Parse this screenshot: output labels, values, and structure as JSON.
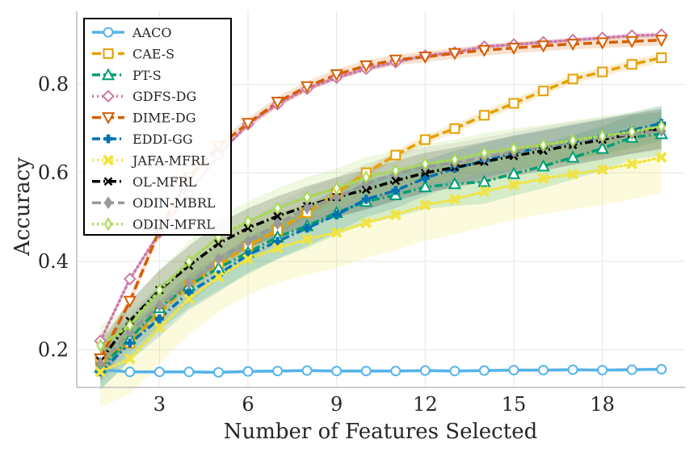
{
  "chart_data": {
    "type": "line",
    "title": "",
    "xlabel": "Number of Features Selected",
    "ylabel": "Accuracy",
    "xlim": [
      0.2,
      20.8
    ],
    "ylim": [
      0.115,
      0.965
    ],
    "xticks": [
      3,
      6,
      9,
      12,
      15,
      18
    ],
    "yticks": [
      0.2,
      0.4,
      0.6,
      0.8
    ],
    "xtick_labels": [
      "3",
      "6",
      "9",
      "12",
      "15",
      "18"
    ],
    "ytick_labels": [
      "0.2",
      "0.4",
      "0.6",
      "0.8"
    ],
    "grid": true,
    "legend_position": "top-left",
    "x": [
      1,
      2,
      3,
      4,
      5,
      6,
      7,
      8,
      9,
      10,
      11,
      12,
      13,
      14,
      15,
      16,
      17,
      18,
      19,
      20
    ],
    "series": [
      {
        "name": "AACO",
        "color": "#56b4e9",
        "dash": "solid",
        "marker": "circle",
        "band": 0.004,
        "values": [
          0.155,
          0.15,
          0.15,
          0.15,
          0.149,
          0.151,
          0.152,
          0.153,
          0.152,
          0.152,
          0.152,
          0.153,
          0.152,
          0.153,
          0.154,
          0.154,
          0.155,
          0.154,
          0.155,
          0.156
        ]
      },
      {
        "name": "CAE-S",
        "color": "#e69f00",
        "dash": "dashed",
        "marker": "square",
        "band": 0.01,
        "values": [
          0.175,
          0.215,
          0.285,
          0.345,
          0.39,
          0.435,
          0.47,
          0.51,
          0.555,
          0.6,
          0.64,
          0.675,
          0.7,
          0.73,
          0.757,
          0.785,
          0.812,
          0.828,
          0.845,
          0.86
        ]
      },
      {
        "name": "PT-S",
        "color": "#009e73",
        "dash": "dashdot",
        "marker": "triangle",
        "band": 0.05,
        "values": [
          0.16,
          0.225,
          0.295,
          0.345,
          0.385,
          0.42,
          0.455,
          0.48,
          0.51,
          0.535,
          0.55,
          0.568,
          0.575,
          0.58,
          0.598,
          0.615,
          0.635,
          0.655,
          0.68,
          0.688
        ]
      },
      {
        "name": "GDFS-DG",
        "color": "#cc79a7",
        "dash": "dotted",
        "marker": "diamond",
        "band": 0.006,
        "values": [
          0.22,
          0.36,
          0.465,
          0.555,
          0.64,
          0.71,
          0.755,
          0.79,
          0.815,
          0.835,
          0.85,
          0.865,
          0.872,
          0.885,
          0.89,
          0.895,
          0.9,
          0.905,
          0.91,
          0.912
        ]
      },
      {
        "name": "DIME-DG",
        "color": "#d55e00",
        "dash": "dashed",
        "marker": "triangle-down",
        "band": 0.012,
        "values": [
          0.18,
          0.31,
          0.47,
          0.59,
          0.66,
          0.712,
          0.76,
          0.795,
          0.822,
          0.842,
          0.855,
          0.862,
          0.87,
          0.877,
          0.882,
          0.887,
          0.891,
          0.894,
          0.897,
          0.9
        ]
      },
      {
        "name": "EDDI-GG",
        "color": "#0072b2",
        "dash": "dashdot",
        "marker": "plus",
        "band": 0.04,
        "values": [
          0.15,
          0.215,
          0.27,
          0.33,
          0.37,
          0.415,
          0.445,
          0.475,
          0.505,
          0.54,
          0.56,
          0.588,
          0.61,
          0.628,
          0.645,
          0.658,
          0.67,
          0.682,
          0.696,
          0.712
        ]
      },
      {
        "name": "JAFA-MFRL",
        "color": "#f0e442",
        "dash": "dotted",
        "marker": "x",
        "band": 0.08,
        "values": [
          0.15,
          0.18,
          0.25,
          0.315,
          0.365,
          0.405,
          0.43,
          0.45,
          0.465,
          0.487,
          0.505,
          0.527,
          0.54,
          0.558,
          0.573,
          0.587,
          0.597,
          0.607,
          0.62,
          0.635
        ]
      },
      {
        "name": "OL-MFRL",
        "color": "#000000",
        "dash": "dashdot",
        "marker": "x-thin",
        "band": 0.045,
        "values": [
          0.175,
          0.265,
          0.335,
          0.39,
          0.44,
          0.475,
          0.502,
          0.525,
          0.545,
          0.562,
          0.582,
          0.6,
          0.612,
          0.625,
          0.638,
          0.65,
          0.663,
          0.675,
          0.688,
          0.7
        ]
      },
      {
        "name": "ODIN-MBRL",
        "color": "#999999",
        "dash": "dashed",
        "marker": "diamond-filled",
        "band": 0.045,
        "values": [
          0.17,
          0.24,
          0.3,
          0.35,
          0.405,
          0.445,
          0.485,
          0.52,
          0.545,
          0.575,
          0.598,
          0.613,
          0.623,
          0.635,
          0.648,
          0.66,
          0.67,
          0.68,
          0.688,
          0.695
        ]
      },
      {
        "name": "ODIN-MFRL",
        "color": "#a6d854",
        "dash": "dotted",
        "marker": "diamond-thin",
        "band": 0.045,
        "values": [
          0.21,
          0.255,
          0.335,
          0.4,
          0.455,
          0.49,
          0.52,
          0.545,
          0.565,
          0.59,
          0.605,
          0.62,
          0.63,
          0.645,
          0.655,
          0.663,
          0.673,
          0.683,
          0.693,
          0.705
        ]
      }
    ]
  }
}
